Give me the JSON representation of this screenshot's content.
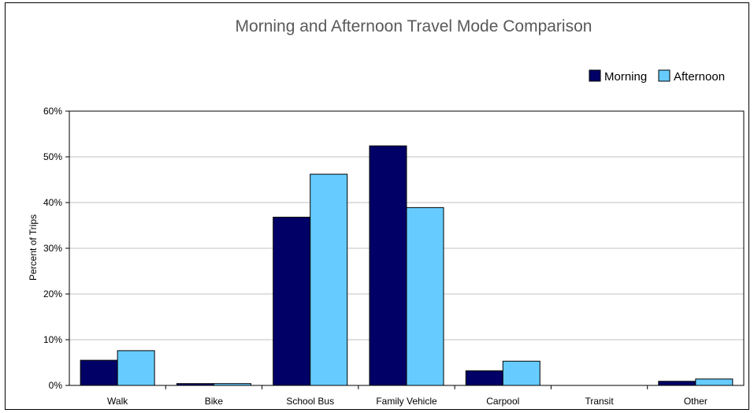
{
  "chart_data": {
    "type": "bar",
    "title": "Morning and Afternoon Travel Mode Comparison",
    "xlabel": "",
    "ylabel": "Percent of Trips",
    "ylim": [
      0,
      60
    ],
    "y_ticks": [
      "0%",
      "10%",
      "20%",
      "30%",
      "40%",
      "50%",
      "60%"
    ],
    "grid": true,
    "legend_position": "top-right",
    "categories": [
      "Walk",
      "Bike",
      "School Bus",
      "Family Vehicle",
      "Carpool",
      "Transit",
      "Other"
    ],
    "series": [
      {
        "name": "Morning",
        "color": "#000066",
        "values": [
          5.5,
          0.4,
          36.8,
          52.4,
          3.2,
          0,
          0.9
        ]
      },
      {
        "name": "Afternoon",
        "color": "#66CCFF",
        "values": [
          7.6,
          0.4,
          46.2,
          38.9,
          5.3,
          0,
          1.4
        ]
      }
    ]
  }
}
